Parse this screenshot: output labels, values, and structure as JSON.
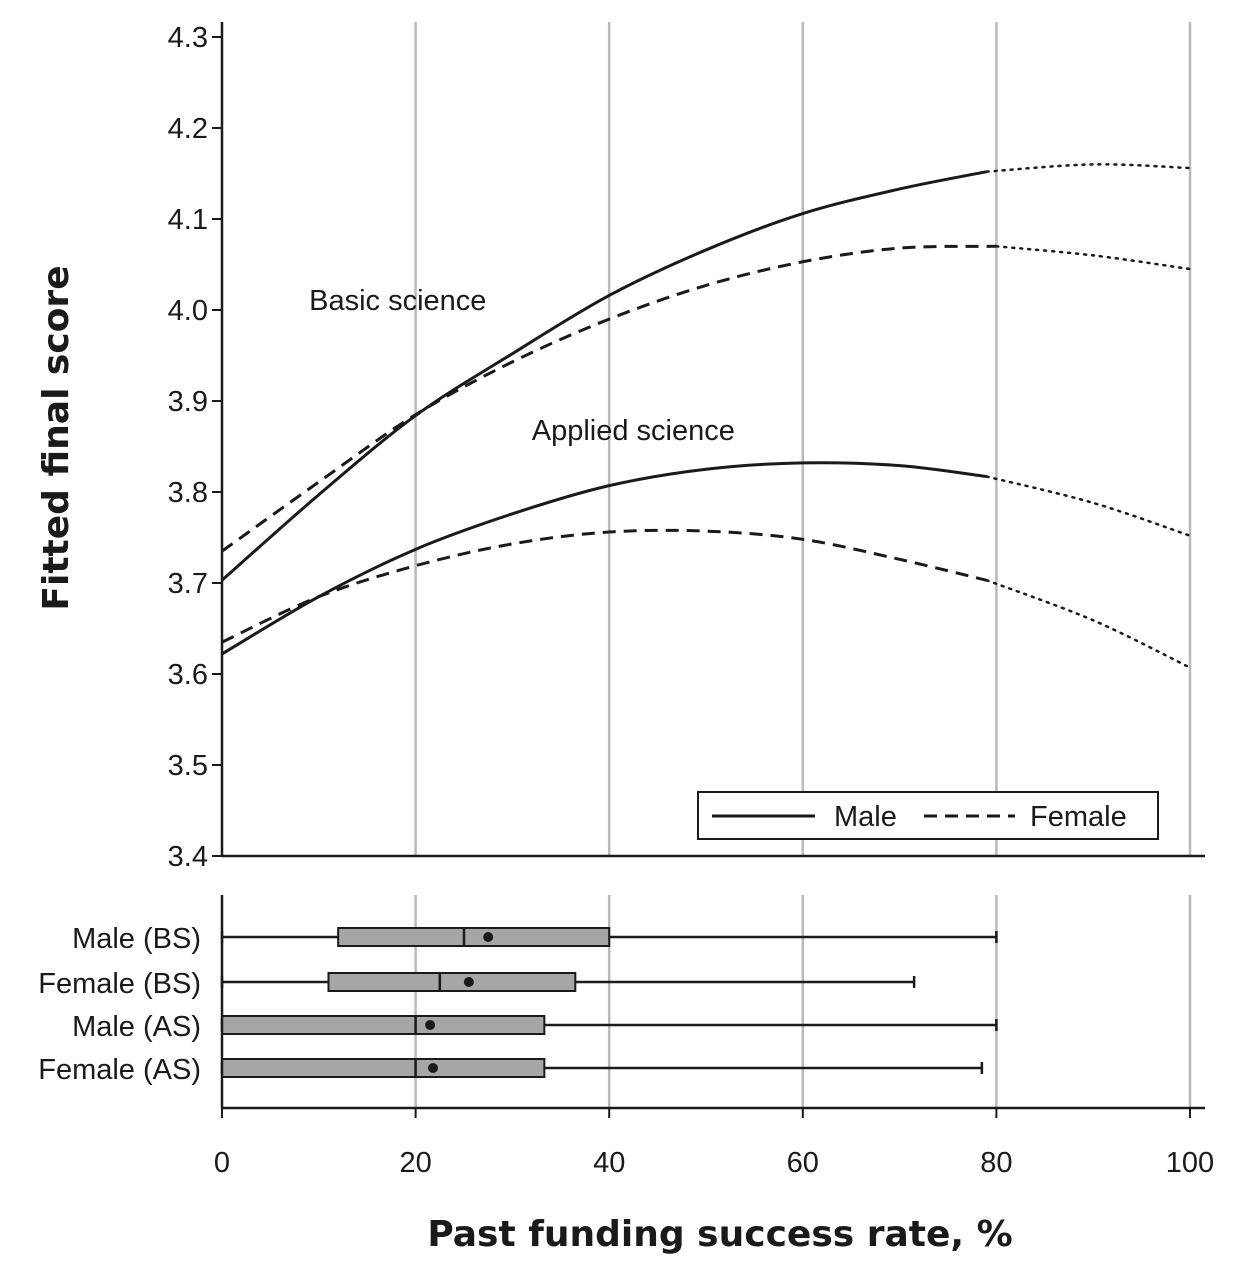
{
  "chart_data": {
    "type": "line",
    "xlabel": "Past funding success rate, %",
    "ylabel": "Fitted final score",
    "xlim": [
      0,
      100
    ],
    "ylim": [
      3.4,
      4.3
    ],
    "x_ticks": [
      "0",
      "20",
      "40",
      "60",
      "80",
      "100"
    ],
    "y_ticks": [
      "3.4",
      "3.5",
      "3.6",
      "3.7",
      "3.8",
      "3.9",
      "4.0",
      "4.1",
      "4.2",
      "4.3"
    ],
    "grid": "vertical",
    "legend": {
      "placement": "bottom-right",
      "entries": [
        {
          "label": "Male",
          "style": "solid"
        },
        {
          "label": "Female",
          "style": "dashed"
        }
      ]
    },
    "annotations": [
      {
        "text": "Basic science",
        "x": 9,
        "y": 4.0
      },
      {
        "text": "Applied science",
        "x": 32,
        "y": 3.857
      }
    ],
    "observed_range_end": 79,
    "series": [
      {
        "name": "Male",
        "group": "Basic science",
        "style": "solid",
        "x": [
          0,
          10,
          20,
          30,
          40,
          50,
          60,
          70,
          79,
          90,
          100
        ],
        "y": [
          3.703,
          3.797,
          3.884,
          3.952,
          4.016,
          4.066,
          4.106,
          4.133,
          4.152,
          4.16,
          4.156
        ]
      },
      {
        "name": "Female",
        "group": "Basic science",
        "style": "dashed",
        "x": [
          0,
          10,
          20,
          30,
          40,
          50,
          60,
          70,
          80,
          90,
          100
        ],
        "y": [
          3.735,
          3.811,
          3.885,
          3.943,
          3.99,
          4.027,
          4.053,
          4.068,
          4.07,
          4.06,
          4.045
        ]
      },
      {
        "name": "Male",
        "group": "Applied science",
        "style": "solid",
        "x": [
          0,
          10,
          20,
          30,
          40,
          50,
          60,
          70,
          79,
          90,
          100
        ],
        "y": [
          3.622,
          3.685,
          3.737,
          3.776,
          3.807,
          3.825,
          3.832,
          3.829,
          3.817,
          3.788,
          3.752
        ]
      },
      {
        "name": "Female",
        "group": "Applied science",
        "style": "dashed",
        "x": [
          0,
          10,
          20,
          30,
          40,
          50,
          60,
          70,
          79,
          90,
          100
        ],
        "y": [
          3.635,
          3.685,
          3.719,
          3.743,
          3.756,
          3.757,
          3.748,
          3.726,
          3.703,
          3.659,
          3.607
        ]
      }
    ],
    "boxplots": [
      {
        "label": "Male (BS)",
        "min": 0,
        "q1": 12,
        "median": 25,
        "mean": 27.5,
        "q3": 40,
        "max": 80
      },
      {
        "label": "Female (BS)",
        "min": 0,
        "q1": 11,
        "median": 22.5,
        "mean": 25.5,
        "q3": 36.5,
        "max": 71.5
      },
      {
        "label": "Male (AS)",
        "min": 0,
        "q1": 0,
        "median": 20,
        "mean": 21.5,
        "q3": 33.3,
        "max": 80
      },
      {
        "label": "Female (AS)",
        "min": 0,
        "q1": 0,
        "median": 20,
        "mean": 21.8,
        "q3": 33.3,
        "max": 78.5
      }
    ]
  }
}
